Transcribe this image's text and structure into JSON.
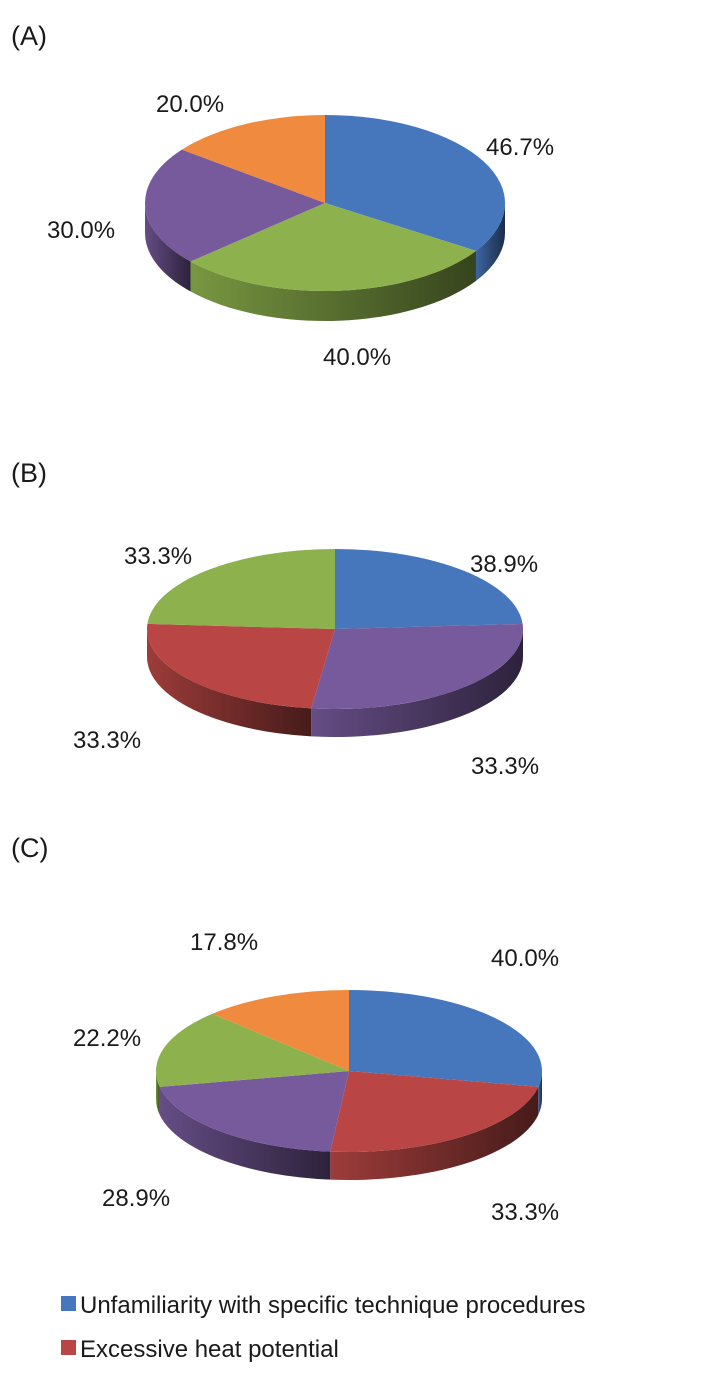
{
  "chart_data": [
    {
      "type": "pie",
      "panel_label": "(A)",
      "title": "",
      "slices": [
        {
          "category_index": 0,
          "value": 46.7,
          "label": "46.7%",
          "color": "#4677BD"
        },
        {
          "category_index": 1,
          "value": 40.0,
          "label": "40.0%",
          "color": "#8DB24D"
        },
        {
          "category_index": 2,
          "value": 30.0,
          "label": "30.0%",
          "color": "#775A9C"
        },
        {
          "category_index": 3,
          "value": 20.0,
          "label": "20.0%",
          "color": "#F08A3E"
        }
      ]
    },
    {
      "type": "pie",
      "panel_label": "(B)",
      "title": "",
      "slices": [
        {
          "category_index": 0,
          "value": 33.3,
          "label": "33.3%",
          "color": "#4677BD"
        },
        {
          "category_index": 1,
          "value": 38.9,
          "label": "38.9%",
          "color": "#775A9C"
        },
        {
          "category_index": 2,
          "value": 33.3,
          "label": "33.3%",
          "color": "#B94644"
        },
        {
          "category_index": 3,
          "value": 33.3,
          "label": "33.3%",
          "color": "#8DB24D"
        }
      ]
    },
    {
      "type": "pie",
      "panel_label": "(C)",
      "title": "",
      "slices": [
        {
          "category_index": 0,
          "value": 40.0,
          "label": "40.0%",
          "color": "#4677BD"
        },
        {
          "category_index": 1,
          "value": 33.3,
          "label": "33.3%",
          "color": "#B94644"
        },
        {
          "category_index": 2,
          "value": 28.9,
          "label": "28.9%",
          "color": "#775A9C"
        },
        {
          "category_index": 3,
          "value": 22.2,
          "label": "22.2%",
          "color": "#8DB24D"
        },
        {
          "category_index": 4,
          "value": 17.8,
          "label": "17.8%",
          "color": "#F08A3E"
        }
      ]
    }
  ],
  "legend": {
    "position": "bottom-left",
    "entries": [
      {
        "label": "Unfamiliarity with specific technique procedures",
        "color": "#4677BD"
      },
      {
        "label": "Excessive heat potential",
        "color": "#B94644"
      }
    ]
  }
}
